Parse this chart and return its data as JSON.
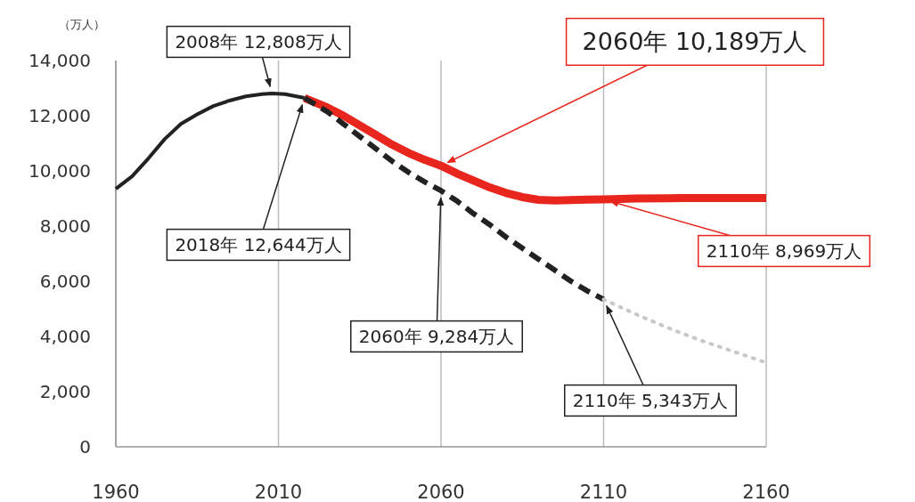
{
  "chart_data": {
    "type": "line",
    "ylabel": "（万人）",
    "xlim": [
      1960,
      2160
    ],
    "ylim": [
      0,
      14000
    ],
    "xticks": [
      1960,
      2010,
      2060,
      2110,
      2160
    ],
    "yticks": [
      {
        "value": 0,
        "label": "0"
      },
      {
        "value": 2000,
        "label": "2,000"
      },
      {
        "value": 4000,
        "label": "4,000"
      },
      {
        "value": 6000,
        "label": "6,000"
      },
      {
        "value": 8000,
        "label": "8,000"
      },
      {
        "value": 10000,
        "label": "10,000"
      },
      {
        "value": 12000,
        "label": "12,000"
      },
      {
        "value": 14000,
        "label": "14,000"
      }
    ],
    "grid": "x",
    "series": [
      {
        "color": "#222222",
        "line_style": "solid",
        "x": [
          1960,
          1965,
          1970,
          1975,
          1980,
          1985,
          1990,
          1995,
          2000,
          2005,
          2008,
          2012,
          2018
        ],
        "values": [
          9350,
          9800,
          10450,
          11150,
          11700,
          12050,
          12350,
          12550,
          12700,
          12780,
          12808,
          12780,
          12644
        ]
      },
      {
        "color": "#e8261e",
        "line_style": "solid",
        "x": [
          2018,
          2025,
          2030,
          2035,
          2040,
          2045,
          2050,
          2055,
          2060,
          2065,
          2070,
          2075,
          2080,
          2085,
          2090,
          2095,
          2100,
          2105,
          2110,
          2120,
          2130,
          2140,
          2150,
          2160
        ],
        "values": [
          12644,
          12300,
          12000,
          11650,
          11300,
          10950,
          10650,
          10400,
          10189,
          9900,
          9650,
          9400,
          9200,
          9050,
          8950,
          8930,
          8940,
          8960,
          8969,
          9000,
          9010,
          9020,
          9020,
          9020
        ]
      },
      {
        "color": "#222222",
        "line_style": "dashed",
        "x": [
          2018,
          2025,
          2030,
          2035,
          2040,
          2045,
          2050,
          2055,
          2060,
          2065,
          2070,
          2075,
          2080,
          2085,
          2090,
          2095,
          2100,
          2105,
          2110
        ],
        "values": [
          12644,
          12150,
          11700,
          11250,
          10800,
          10350,
          9950,
          9600,
          9284,
          8900,
          8450,
          8050,
          7600,
          7200,
          6800,
          6400,
          6000,
          5650,
          5343
        ]
      },
      {
        "color": "#c8c8c8",
        "line_style": "dotted",
        "x": [
          2110,
          2120,
          2130,
          2140,
          2150,
          2160
        ],
        "values": [
          5343,
          4800,
          4300,
          3850,
          3450,
          3050
        ]
      }
    ],
    "annotations": [
      {
        "text": "2008年  12,808万人",
        "x": 2008,
        "y": 12808
      },
      {
        "text": "2018年  12,644万人",
        "x": 2018,
        "y": 12644
      },
      {
        "text": "2060年  9,284万人",
        "x": 2060,
        "y": 9284
      },
      {
        "text": "2110年  5,343万人",
        "x": 2110,
        "y": 5343
      },
      {
        "text": "2060年   10,189万人",
        "x": 2060,
        "y": 10189
      },
      {
        "text": "2110年  8,969万人",
        "x": 2110,
        "y": 8969
      }
    ]
  }
}
